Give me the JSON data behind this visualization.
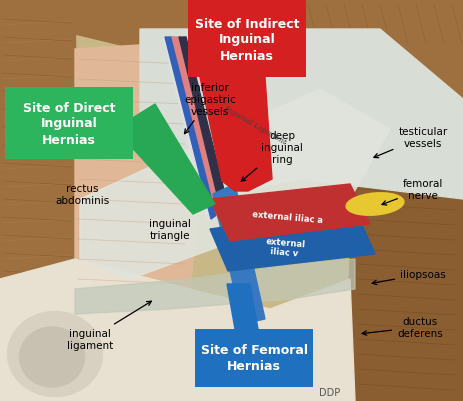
{
  "figsize": [
    4.63,
    4.02
  ],
  "dpi": 100,
  "labels": {
    "direct": "Site of Direct\nInguinal\nHernias",
    "indirect": "Site of Indirect\nInguinal\nHernias",
    "femoral": "Site of Femoral\nHernias",
    "inferior_epigastric": "inferior\nepigastric\nvessels",
    "deep_inguinal": "deep\ninguinal\nring",
    "rectus": "rectus\nabdominis",
    "inguinal_triangle": "inguinal\ntriangle",
    "ext_iliac_a": "external iliac a",
    "ext_iliac_v": "external\niliac v",
    "testicular": "testicular\nvessels",
    "femoral_nerve": "femoral\nnerve",
    "iliopsoas": "iliopsoas",
    "ductus": "ductus\ndeferens",
    "inguinal_lig": "inguinal\nligament",
    "ddp": "DDP"
  },
  "box_colors": {
    "direct": "#2db55d",
    "indirect": "#d42020",
    "femoral": "#2070c0"
  },
  "colors": {
    "artery": "#c0392b",
    "vein": "#2980b9",
    "nerve": "#e8c840",
    "spermatic_blue": "#3878c0",
    "green_arrow": "#28a855",
    "red_arrow": "#d42020",
    "muscle_brown": "#8b5e35",
    "muscle_light": "#c4956a",
    "muscle_tan": "#c8aa82",
    "fascia_white": "#dde0d8",
    "fascia_gray": "#b8c0b8",
    "skin_pink": "#e8c0a8",
    "peritoneum": "#e8d8c0",
    "bg_tan": "#c8b888"
  }
}
